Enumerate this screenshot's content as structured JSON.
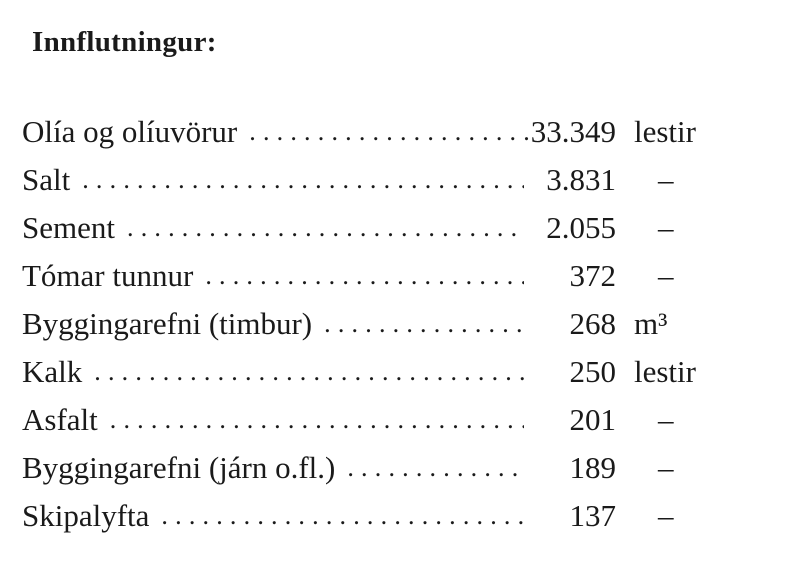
{
  "title": "Innflutningur:",
  "leader": "......................................................",
  "rows": [
    {
      "label": "Olía og olíuvörur",
      "value": "33.349",
      "unit": "lestir"
    },
    {
      "label": "Salt",
      "value": "3.831",
      "unit": "–"
    },
    {
      "label": "Sement",
      "value": "2.055",
      "unit": "–"
    },
    {
      "label": "Tómar tunnur",
      "value": "372",
      "unit": "–"
    },
    {
      "label": "Byggingarefni (timbur)",
      "value": "268",
      "unit": "m³"
    },
    {
      "label": "Kalk",
      "value": "250",
      "unit": "lestir"
    },
    {
      "label": "Asfalt",
      "value": "201",
      "unit": "–"
    },
    {
      "label": "Byggingarefni (járn o.fl.)",
      "value": "189",
      "unit": "–"
    },
    {
      "label": "Skipalyfta",
      "value": "137",
      "unit": "–"
    }
  ]
}
